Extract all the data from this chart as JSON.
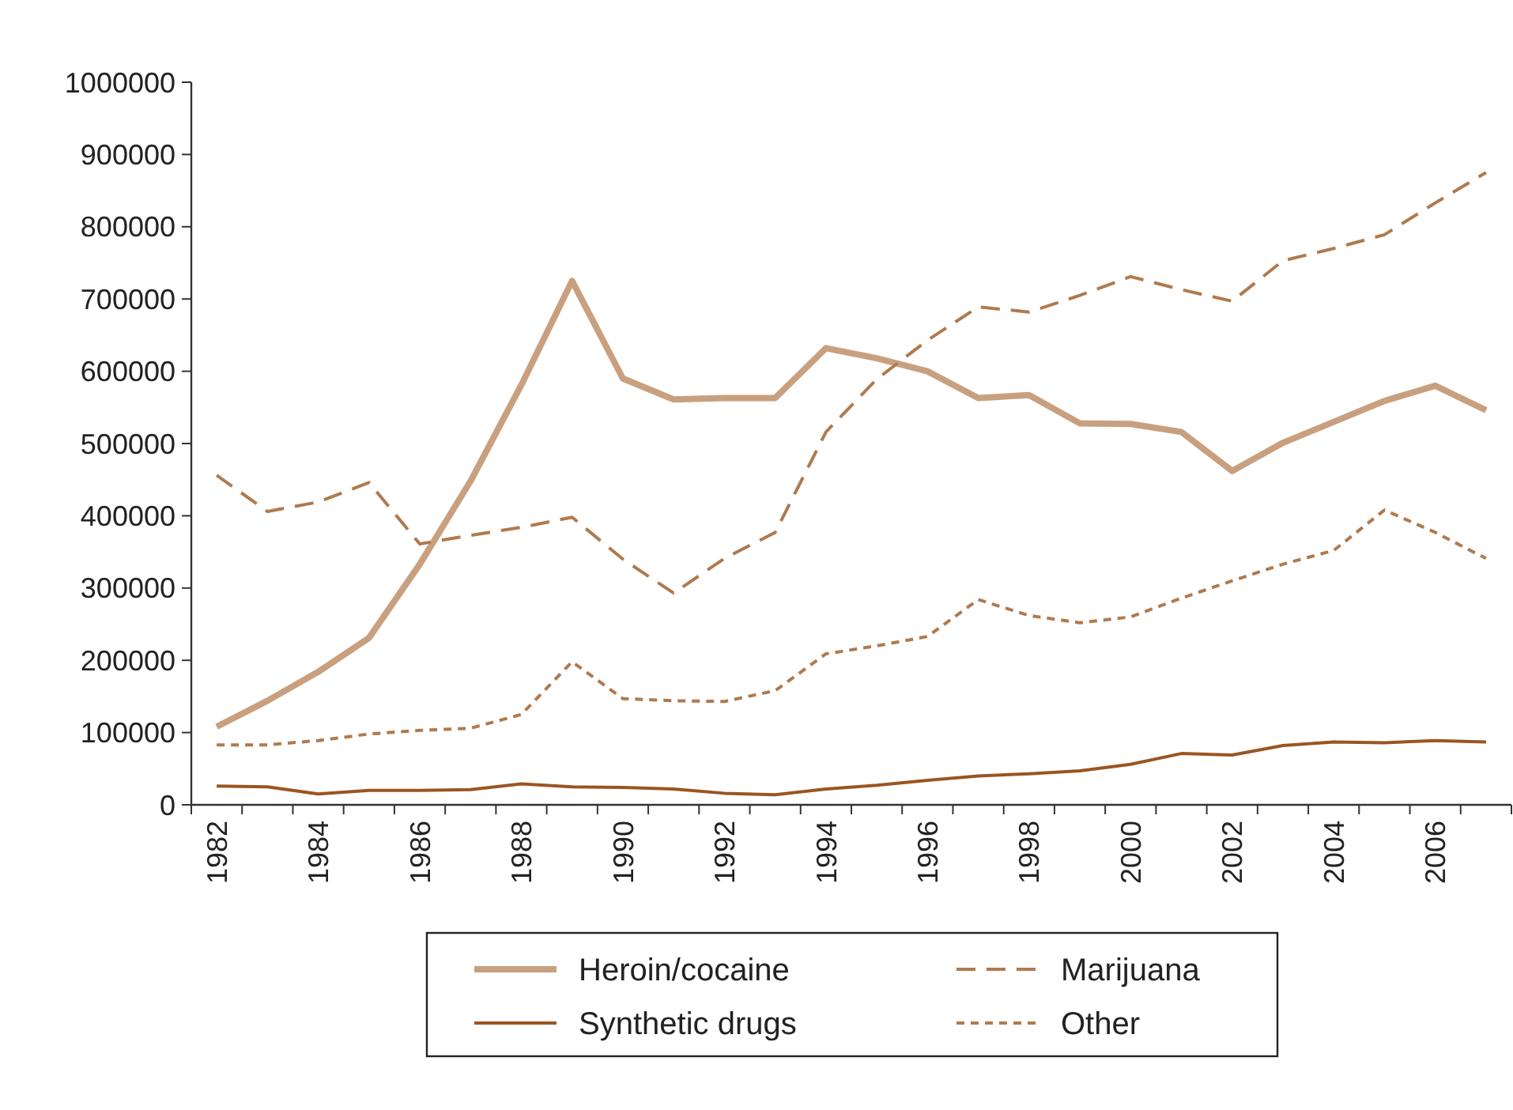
{
  "chart_data": {
    "type": "line",
    "categories": [
      "1982",
      null,
      "1984",
      null,
      "1986",
      null,
      "1988",
      null,
      "1990",
      null,
      "1992",
      null,
      "1994",
      null,
      "1996",
      null,
      "1998",
      null,
      "2000",
      null,
      "2002",
      null,
      "2004",
      null,
      "2006",
      null
    ],
    "series": [
      {
        "name": "Heroin/cocaine",
        "color": "#c9a07f",
        "line_style": "solid",
        "values": [
          108000,
          144000,
          184000,
          231000,
          333000,
          448000,
          581000,
          725000,
          590000,
          561000,
          563000,
          563000,
          632000,
          618000,
          600000,
          563000,
          567000,
          528000,
          527000,
          516000,
          462000,
          501000,
          530000,
          559000,
          580000,
          546000
        ]
      },
      {
        "name": "Marijuana",
        "color": "#b07a4e",
        "line_style": "dashed",
        "values": [
          456000,
          406000,
          419000,
          446000,
          361000,
          373000,
          384000,
          398000,
          340000,
          293000,
          341000,
          377000,
          516000,
          589000,
          643000,
          689000,
          682000,
          705000,
          731000,
          713000,
          697000,
          753000,
          770000,
          789000,
          833000,
          875000
        ]
      },
      {
        "name": "Synthetic drugs",
        "color": "#9a5522",
        "line_style": "solid",
        "values": [
          26000,
          25000,
          15000,
          20000,
          20000,
          21000,
          29000,
          25000,
          24000,
          22000,
          16000,
          14000,
          22000,
          27000,
          34000,
          40000,
          43000,
          47000,
          56000,
          71000,
          69000,
          82000,
          87000,
          86000,
          89000,
          87000
        ]
      },
      {
        "name": "Other",
        "color": "#b07a4e",
        "line_style": "dotted",
        "values": [
          83000,
          83000,
          89000,
          98000,
          103000,
          106000,
          125000,
          198000,
          147000,
          144000,
          143000,
          158000,
          209000,
          220000,
          233000,
          284000,
          262000,
          252000,
          260000,
          286000,
          310000,
          333000,
          352000,
          408000,
          377000,
          341000
        ]
      }
    ],
    "ylim": [
      0,
      1000000
    ],
    "yticks": [
      0,
      100000,
      200000,
      300000,
      400000,
      500000,
      600000,
      700000,
      800000,
      900000,
      1000000
    ],
    "legend": "bottom",
    "grid": false,
    "marker": "none"
  }
}
